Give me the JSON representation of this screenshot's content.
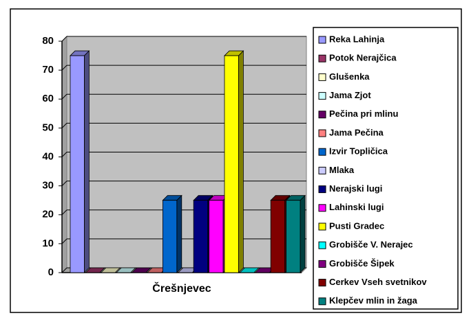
{
  "chart_data": {
    "type": "bar3d",
    "categories": [
      "Črešnjevec"
    ],
    "series": [
      {
        "name": "Reka Lahinja",
        "color": "#9999ff",
        "values": [
          75
        ]
      },
      {
        "name": "Potok Nerajčica",
        "color": "#993366",
        "values": [
          0
        ]
      },
      {
        "name": "Glušenka",
        "color": "#ffffcc",
        "values": [
          0
        ]
      },
      {
        "name": "Jama Zjot",
        "color": "#ccffff",
        "values": [
          0
        ]
      },
      {
        "name": "Pečina pri mlinu",
        "color": "#660066",
        "values": [
          0
        ]
      },
      {
        "name": "Jama Pečina",
        "color": "#ff8080",
        "values": [
          0
        ]
      },
      {
        "name": "Izvir Topličica",
        "color": "#0066cc",
        "values": [
          25
        ]
      },
      {
        "name": "Mlaka",
        "color": "#ccccff",
        "values": [
          0
        ]
      },
      {
        "name": "Nerajski lugi",
        "color": "#000080",
        "values": [
          25
        ]
      },
      {
        "name": "Lahinski lugi",
        "color": "#ff00ff",
        "values": [
          25
        ]
      },
      {
        "name": "Pusti Gradec",
        "color": "#ffff00",
        "values": [
          75
        ]
      },
      {
        "name": "Grobišče V. Nerajec",
        "color": "#00ffff",
        "values": [
          0
        ]
      },
      {
        "name": "Grobišče Šipek",
        "color": "#800080",
        "values": [
          0
        ]
      },
      {
        "name": "Cerkev Vseh svetnikov",
        "color": "#800000",
        "values": [
          25
        ]
      },
      {
        "name": "Klepčev mlin in žaga",
        "color": "#008080",
        "values": [
          25
        ]
      }
    ],
    "ylim": [
      0,
      80
    ],
    "yticks": [
      0,
      10,
      20,
      30,
      40,
      50,
      60,
      70,
      80
    ],
    "grid": true,
    "legend": "right"
  }
}
